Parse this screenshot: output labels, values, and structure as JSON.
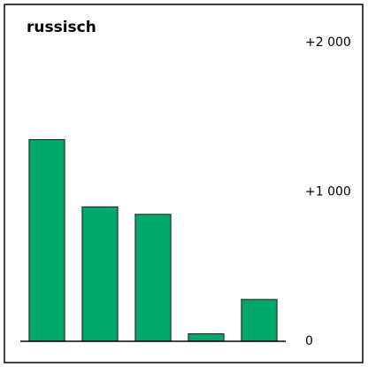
{
  "chart_data": {
    "type": "bar",
    "title": "russisch",
    "categories": [
      null,
      null,
      null,
      null,
      null
    ],
    "values": [
      1350,
      900,
      850,
      50,
      280
    ],
    "color": "#00a86b",
    "ylim": [
      0,
      2000
    ],
    "yticks": [
      0,
      {
        "value": 1000,
        "label": "+1 000"
      },
      {
        "value": 2000,
        "label": "+2 000"
      }
    ],
    "grid": false
  }
}
